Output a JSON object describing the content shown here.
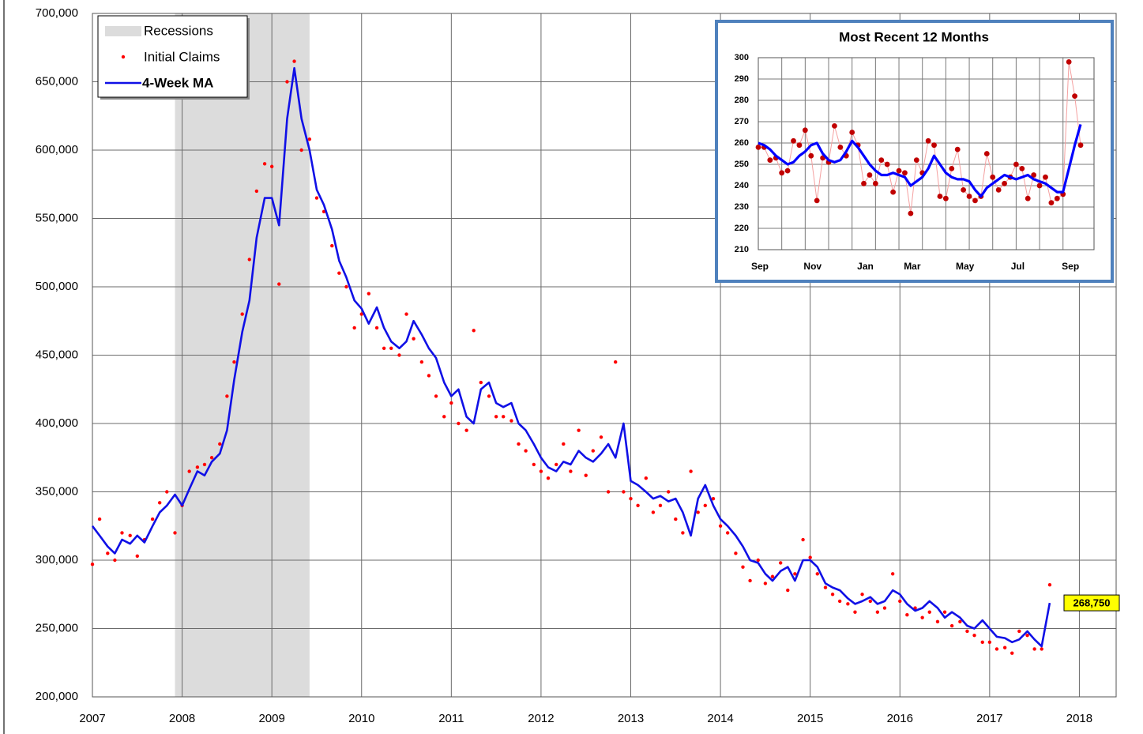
{
  "chart_data": [
    {
      "type": "line",
      "xlim": [
        2007,
        2018.41
      ],
      "xticks": [
        2007,
        2008,
        2009,
        2010,
        2011,
        2012,
        2013,
        2014,
        2015,
        2016,
        2017,
        2018
      ],
      "ylim": [
        200000,
        700000
      ],
      "yticks": [
        {
          "value": 200000,
          "label": "200,000"
        },
        {
          "value": 250000,
          "label": "250,000"
        },
        {
          "value": 300000,
          "label": "300,000"
        },
        {
          "value": 350000,
          "label": "350,000"
        },
        {
          "value": 400000,
          "label": "400,000"
        },
        {
          "value": 450000,
          "label": "450,000"
        },
        {
          "value": 500000,
          "label": "500,000"
        },
        {
          "value": 550000,
          "label": "550,000"
        },
        {
          "value": 600000,
          "label": "600,000"
        },
        {
          "value": 650000,
          "label": "650,000"
        },
        {
          "value": 700000,
          "label": "700,000"
        }
      ],
      "grid": true,
      "legend": "top-left",
      "recession": {
        "name": "Recessions",
        "color": "#dcdcdc",
        "start": 2007.92,
        "end": 2009.42
      },
      "x": [
        2007.0,
        2007.08,
        2007.17,
        2007.25,
        2007.33,
        2007.42,
        2007.5,
        2007.58,
        2007.67,
        2007.75,
        2007.83,
        2007.92,
        2008.0,
        2008.08,
        2008.17,
        2008.25,
        2008.33,
        2008.42,
        2008.5,
        2008.58,
        2008.67,
        2008.75,
        2008.83,
        2008.92,
        2009.0,
        2009.08,
        2009.17,
        2009.25,
        2009.33,
        2009.42,
        2009.5,
        2009.58,
        2009.67,
        2009.75,
        2009.83,
        2009.92,
        2010.0,
        2010.08,
        2010.17,
        2010.25,
        2010.33,
        2010.42,
        2010.5,
        2010.58,
        2010.67,
        2010.75,
        2010.83,
        2010.92,
        2011.0,
        2011.08,
        2011.17,
        2011.25,
        2011.33,
        2011.42,
        2011.5,
        2011.58,
        2011.67,
        2011.75,
        2011.83,
        2011.92,
        2012.0,
        2012.08,
        2012.17,
        2012.25,
        2012.33,
        2012.42,
        2012.5,
        2012.58,
        2012.67,
        2012.75,
        2012.83,
        2012.92,
        2013.0,
        2013.08,
        2013.17,
        2013.25,
        2013.33,
        2013.42,
        2013.5,
        2013.58,
        2013.67,
        2013.75,
        2013.83,
        2013.92,
        2014.0,
        2014.08,
        2014.17,
        2014.25,
        2014.33,
        2014.42,
        2014.5,
        2014.58,
        2014.67,
        2014.75,
        2014.83,
        2014.92,
        2015.0,
        2015.08,
        2015.17,
        2015.25,
        2015.33,
        2015.42,
        2015.5,
        2015.58,
        2015.67,
        2015.75,
        2015.83,
        2015.92,
        2016.0,
        2016.08,
        2016.17,
        2016.25,
        2016.33,
        2016.42,
        2016.5,
        2016.58,
        2016.67,
        2016.75,
        2016.83,
        2016.92,
        2017.0,
        2017.08,
        2017.17,
        2017.25,
        2017.33,
        2017.42,
        2017.5,
        2017.58,
        2017.67
      ],
      "series": [
        {
          "name": "Initial Claims",
          "type": "scatter",
          "color": "#ff0000",
          "values": [
            297000,
            330000,
            305000,
            300000,
            320000,
            318000,
            303000,
            315000,
            330000,
            342000,
            350000,
            320000,
            340000,
            365000,
            368000,
            370000,
            375000,
            385000,
            420000,
            445000,
            480000,
            520000,
            570000,
            590000,
            588000,
            502000,
            650000,
            665000,
            600000,
            608000,
            565000,
            555000,
            530000,
            510000,
            500000,
            470000,
            480000,
            495000,
            470000,
            455000,
            455000,
            450000,
            480000,
            462000,
            445000,
            435000,
            420000,
            405000,
            415000,
            400000,
            395000,
            468000,
            430000,
            420000,
            405000,
            405000,
            402000,
            385000,
            380000,
            370000,
            365000,
            360000,
            370000,
            385000,
            365000,
            395000,
            362000,
            380000,
            390000,
            350000,
            445000,
            350000,
            345000,
            340000,
            360000,
            335000,
            340000,
            350000,
            330000,
            320000,
            365000,
            335000,
            340000,
            345000,
            325000,
            320000,
            305000,
            295000,
            285000,
            300000,
            283000,
            288000,
            298000,
            278000,
            290000,
            315000,
            302000,
            290000,
            280000,
            275000,
            270000,
            268000,
            262000,
            275000,
            270000,
            262000,
            265000,
            290000,
            270000,
            260000,
            265000,
            258000,
            262000,
            255000,
            262000,
            252000,
            255000,
            248000,
            245000,
            240000,
            240000,
            235000,
            236000,
            232000,
            248000,
            245000,
            235000,
            235000,
            282000
          ]
        },
        {
          "name": "4-Week MA",
          "type": "line",
          "color": "#1010e6",
          "values": [
            325000,
            318000,
            310000,
            305000,
            315000,
            312000,
            318000,
            313000,
            325000,
            335000,
            340000,
            348000,
            340000,
            352000,
            365000,
            362000,
            372000,
            378000,
            395000,
            432000,
            467000,
            490000,
            536000,
            565000,
            565000,
            545000,
            623000,
            660000,
            623000,
            600000,
            571000,
            560000,
            542000,
            519000,
            507000,
            490000,
            484000,
            473000,
            485000,
            470000,
            460000,
            455000,
            460000,
            475000,
            465000,
            455000,
            448000,
            430000,
            420000,
            425000,
            405000,
            400000,
            425000,
            430000,
            415000,
            412000,
            415000,
            400000,
            395000,
            385000,
            375000,
            368000,
            365000,
            372000,
            370000,
            380000,
            375000,
            372000,
            378000,
            385000,
            375000,
            400000,
            358000,
            355000,
            350000,
            345000,
            347000,
            343000,
            345000,
            335000,
            318000,
            345000,
            355000,
            340000,
            330000,
            325000,
            318000,
            310000,
            300000,
            298000,
            290000,
            285000,
            292000,
            295000,
            285000,
            300000,
            300000,
            295000,
            283000,
            280000,
            278000,
            272000,
            268000,
            270000,
            273000,
            268000,
            270000,
            278000,
            275000,
            268000,
            263000,
            265000,
            270000,
            265000,
            258000,
            262000,
            258000,
            252000,
            250000,
            256000,
            250000,
            244000,
            243000,
            240000,
            242000,
            248000,
            242000,
            237000,
            268750
          ]
        }
      ],
      "annotation": {
        "value": 268750,
        "label": "268,750",
        "color": "#ffff00"
      }
    },
    {
      "type": "line",
      "title": "Most Recent 12 Months",
      "categories": [
        "Sep",
        null,
        null,
        null,
        null,
        null,
        null,
        null,
        null,
        "Nov",
        null,
        null,
        null,
        null,
        null,
        null,
        null,
        null,
        "Jan",
        null,
        null,
        null,
        null,
        null,
        null,
        null,
        "Mar",
        null,
        null,
        null,
        null,
        null,
        null,
        null,
        null,
        "May",
        null,
        null,
        null,
        null,
        null,
        null,
        null,
        null,
        "Jul",
        null,
        null,
        null,
        null,
        null,
        null,
        null,
        null,
        "Sep",
        null,
        null
      ],
      "ylim": [
        210,
        300
      ],
      "yticks": [
        210,
        220,
        230,
        240,
        250,
        260,
        270,
        280,
        290,
        300
      ],
      "grid": true,
      "series": [
        {
          "type": "line-marker",
          "color": "#c00000",
          "line_color": "#f4a0a0",
          "values": [
            258,
            258,
            252,
            253,
            246,
            247,
            261,
            259,
            266,
            254,
            233,
            253,
            251,
            268,
            258,
            254,
            265,
            259,
            241,
            245,
            241,
            252,
            250,
            237,
            247,
            246,
            227,
            252,
            246,
            261,
            259,
            235,
            234,
            248,
            257,
            238,
            235,
            233,
            235,
            255,
            244,
            238,
            241,
            244,
            250,
            248,
            234,
            245,
            240,
            244,
            232,
            234,
            236,
            298,
            282,
            259
          ]
        },
        {
          "type": "line",
          "color": "#0000ff",
          "values": [
            260,
            259,
            257,
            254,
            252,
            250,
            251,
            254,
            256,
            259,
            260,
            255,
            252,
            251,
            252,
            256,
            261,
            258,
            254,
            250,
            247,
            245,
            245,
            246,
            245,
            244,
            240,
            242,
            244,
            248,
            254,
            250,
            246,
            244,
            243,
            243,
            242,
            238,
            235,
            239,
            241,
            243,
            245,
            244,
            243,
            244,
            245,
            243,
            242,
            241,
            239,
            237,
            237,
            248,
            259,
            268.75
          ]
        }
      ]
    }
  ]
}
